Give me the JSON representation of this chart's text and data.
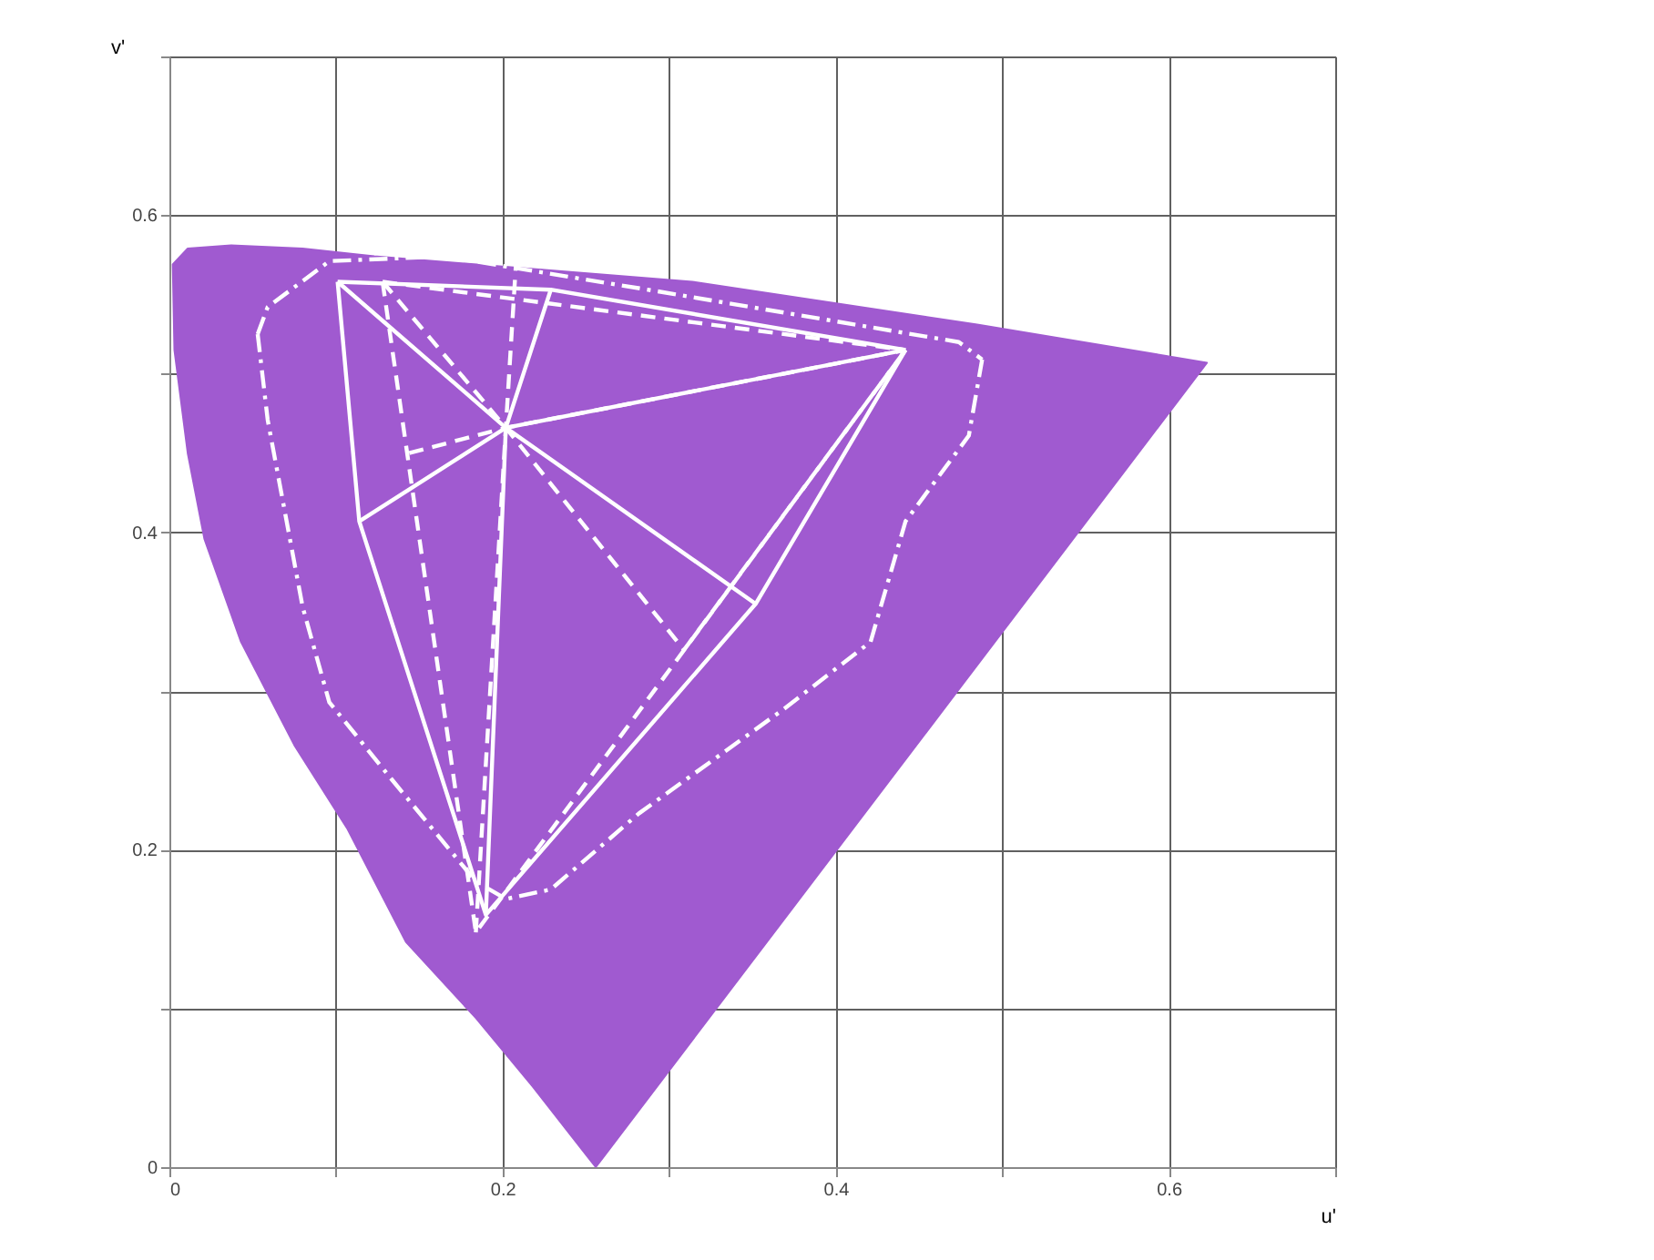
{
  "chart_data": {
    "type": "line",
    "xlabel": "u'",
    "ylabel": "v'",
    "xlim": [
      0,
      0.7
    ],
    "ylim": [
      0,
      0.7
    ],
    "xticks": [
      0,
      {
        "value": 0.1,
        "label": null
      },
      0.2,
      {
        "value": 0.3,
        "label": null
      },
      0.4,
      {
        "value": 0.5,
        "label": null
      },
      0.6,
      {
        "value": 0.7,
        "label": null
      }
    ],
    "yticks": [
      0,
      {
        "value": 0.1,
        "label": null
      },
      0.2,
      {
        "value": 0.3,
        "label": null
      },
      0.4,
      {
        "value": 0.5,
        "label": null
      },
      0.6,
      {
        "value": 0.7,
        "label": null
      }
    ],
    "grid": true,
    "marker": "none",
    "series": [
      {
        "type": "area",
        "color": "#a05ad0",
        "line_style": "solid",
        "x": [
          0.256,
          0.218,
          0.184,
          0.142,
          0.107,
          0.075,
          0.043,
          0.021,
          0.011,
          0.003,
          0.002,
          0.011,
          0.037,
          0.08,
          0.123,
          0.314,
          0.485,
          0.623,
          0.256
        ],
        "values": [
          0.0,
          0.051,
          0.094,
          0.142,
          0.213,
          0.266,
          0.331,
          0.396,
          0.45,
          0.515,
          0.569,
          0.579,
          0.581,
          0.579,
          0.574,
          0.558,
          0.531,
          0.507,
          0.0
        ]
      },
      {
        "type": "line",
        "color": "#ffffff",
        "line_style": "solid",
        "x": [
          0.101,
          0.229,
          0.442
        ],
        "values": [
          0.558,
          0.553,
          0.515
        ]
      },
      {
        "type": "line",
        "color": "#ffffff",
        "line_style": "solid",
        "x": [
          0.101,
          0.114,
          0.19,
          0.352,
          0.442
        ],
        "values": [
          0.558,
          0.407,
          0.159,
          0.355,
          0.515
        ]
      },
      {
        "type": "line",
        "color": "#ffffff",
        "line_style": "solid",
        "x": [
          0.101,
          0.202,
          0.442
        ],
        "values": [
          0.558,
          0.466,
          0.515
        ]
      },
      {
        "type": "line",
        "color": "#ffffff",
        "line_style": "solid",
        "x": [
          0.114,
          0.202,
          0.352
        ],
        "values": [
          0.407,
          0.466,
          0.355
        ]
      },
      {
        "type": "line",
        "color": "#ffffff",
        "line_style": "solid",
        "x": [
          0.19,
          0.202,
          0.229
        ],
        "values": [
          0.159,
          0.466,
          0.553
        ]
      },
      {
        "type": "line",
        "color": "#ffffff",
        "line_style": "dashed",
        "x": [
          0.128,
          0.442
        ],
        "values": [
          0.558,
          0.515
        ]
      },
      {
        "type": "line",
        "color": "#ffffff",
        "line_style": "dashed",
        "x": [
          0.128,
          0.184,
          0.442
        ],
        "values": [
          0.558,
          0.148,
          0.515
        ]
      },
      {
        "type": "line",
        "color": "#ffffff",
        "line_style": "dashed",
        "x": [
          0.128,
          0.202,
          0.309
        ],
        "values": [
          0.558,
          0.466,
          0.326
        ]
      },
      {
        "type": "line",
        "color": "#ffffff",
        "line_style": "dashed",
        "x": [
          0.309,
          0.442
        ],
        "values": [
          0.326,
          0.515
        ]
      },
      {
        "type": "line",
        "color": "#ffffff",
        "line_style": "dashed",
        "x": [
          0.144,
          0.202,
          0.442
        ],
        "values": [
          0.45,
          0.466,
          0.515
        ]
      },
      {
        "type": "line",
        "color": "#ffffff",
        "line_style": "dashed",
        "x": [
          0.184,
          0.202,
          0.208
        ],
        "values": [
          0.148,
          0.466,
          0.568
        ]
      },
      {
        "type": "line",
        "color": "#ffffff",
        "line_style": "dashdot",
        "x": [
          0.053,
          0.059,
          0.096,
          0.165,
          0.293,
          0.474,
          0.488
        ],
        "values": [
          0.525,
          0.542,
          0.571,
          0.574,
          0.552,
          0.52,
          0.509
        ]
      },
      {
        "type": "line",
        "color": "#ffffff",
        "line_style": "dashdot",
        "x": [
          0.053,
          0.059,
          0.08,
          0.096,
          0.133,
          0.184,
          0.202,
          0.229,
          0.282,
          0.368,
          0.421,
          0.442,
          0.48,
          0.488
        ],
        "values": [
          0.525,
          0.471,
          0.353,
          0.293,
          0.245,
          0.18,
          0.169,
          0.175,
          0.223,
          0.288,
          0.331,
          0.407,
          0.461,
          0.509
        ]
      }
    ]
  }
}
